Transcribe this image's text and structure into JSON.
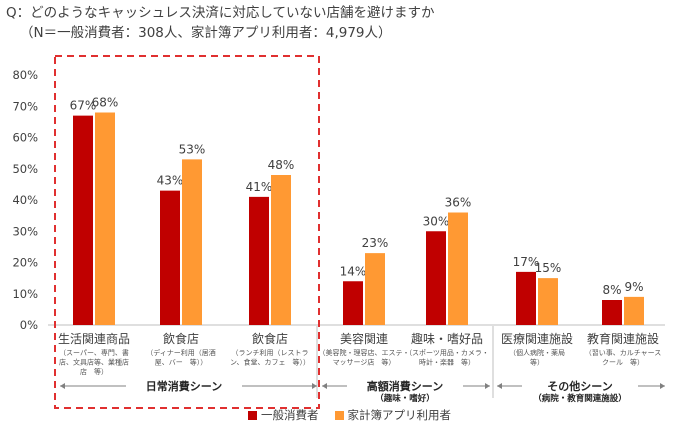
{
  "question": {
    "line1": "Q：どのようなキャッシュレス決済に対応していない店舗を避けますか",
    "line2": "（N＝一般消費者：308人、家計簿アプリ利用者：4,979人）"
  },
  "colors": {
    "series1": "#c00000",
    "series2": "#ff9933",
    "highlight_box": "#e03030"
  },
  "chart_data": {
    "type": "bar",
    "ylim": [
      0,
      80
    ],
    "yticks": [
      "0%",
      "10%",
      "20%",
      "30%",
      "40%",
      "50%",
      "60%",
      "70%",
      "80%"
    ],
    "categories": [
      "生活関連商品",
      "飲食店",
      "飲食店",
      "美容関連",
      "趣味・嗜好品",
      "医療関連施設",
      "教育関連施設"
    ],
    "category_notes": [
      [
        "（スーパー、専門、書",
        "店、文具店等、業種店",
        "店　等）"
      ],
      [
        "（ディナー利用（居酒",
        "屋、バー　等））"
      ],
      [
        "（ランチ利用（レストラ",
        "ン、食堂、カフェ　等））"
      ],
      [
        "（美容院・理容店、エステ・",
        "マッサージ店　等）"
      ],
      [
        "（スポーツ用品・カメラ・",
        "時計・楽器　等）"
      ],
      [
        "（個人病院・薬局",
        "等）"
      ],
      [
        "（習い事、カルチャース",
        "クール　等）"
      ]
    ],
    "series": [
      {
        "name": "一般消費者",
        "values": [
          67,
          43,
          41,
          14,
          30,
          17,
          8
        ],
        "labels": [
          "67%",
          "43%",
          "41%",
          "14%",
          "30%",
          "17%",
          "8%"
        ]
      },
      {
        "name": "家計簿アプリ利用者",
        "values": [
          68,
          53,
          48,
          23,
          36,
          15,
          9
        ],
        "labels": [
          "68%",
          "53%",
          "48%",
          "23%",
          "36%",
          "15%",
          "9%"
        ]
      }
    ],
    "groups": [
      {
        "label": "日常消費シーン",
        "sublabel": "",
        "span": [
          0,
          2
        ]
      },
      {
        "label": "高額消費シーン",
        "sublabel": "（趣味・嗜好）",
        "span": [
          3,
          4
        ]
      },
      {
        "label": "その他シーン",
        "sublabel": "（病院・教育関連施設）",
        "span": [
          5,
          6
        ]
      }
    ],
    "highlighted_group": 0
  }
}
